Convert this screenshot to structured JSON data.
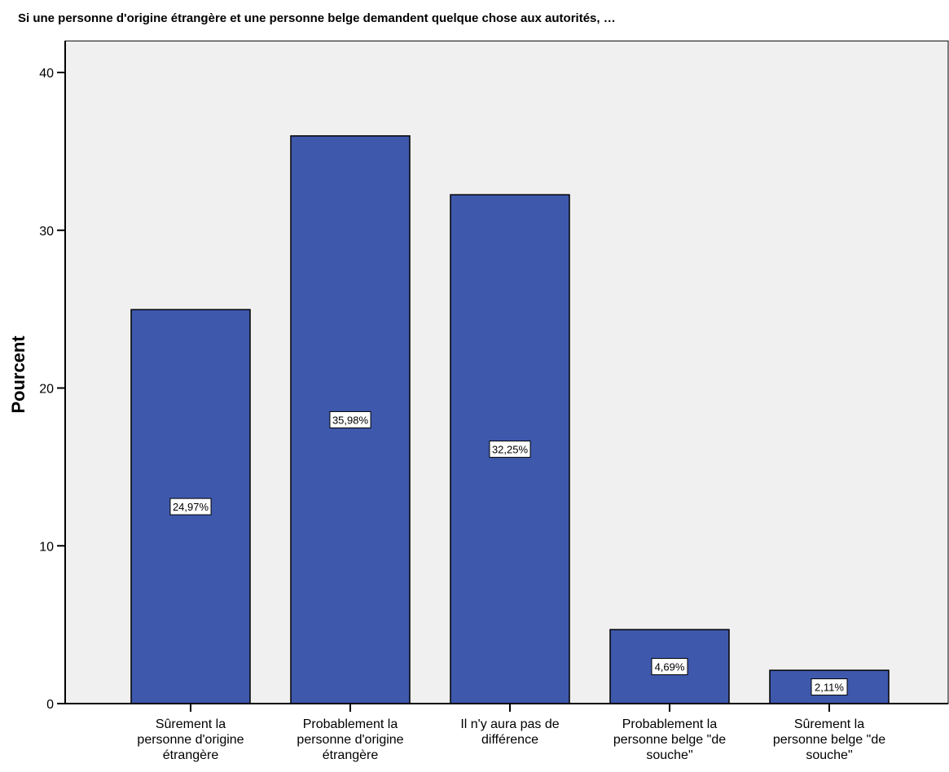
{
  "chart_data": {
    "type": "bar",
    "title": "Si une personne d'origine étrangère et une personne belge demandent quelque chose aux autorités, …",
    "ylabel": "Pourcent",
    "xlabel": "",
    "categories": [
      [
        "Sûrement la",
        "personne d'origine",
        "étrangère"
      ],
      [
        "Probablement la",
        "personne d'origine",
        "étrangère"
      ],
      [
        "Il n'y aura pas de",
        "différence"
      ],
      [
        "Probablement la",
        "personne belge \"de",
        "souche\""
      ],
      [
        "Sûrement la",
        "personne belge \"de",
        "souche\""
      ]
    ],
    "values": [
      24.97,
      35.98,
      32.25,
      4.69,
      2.11
    ],
    "data_labels": [
      "24,97%",
      "35,98%",
      "32,25%",
      "4,69%",
      "2,11%"
    ],
    "ylim": [
      0,
      42
    ],
    "yticks": [
      0,
      10,
      20,
      30,
      40
    ],
    "grid": false,
    "legend": "none",
    "colors": {
      "bar_fill": "#3e58ac",
      "bar_stroke": "#000000",
      "plot_background": "#f0f0f0",
      "axis": "#000000"
    }
  }
}
